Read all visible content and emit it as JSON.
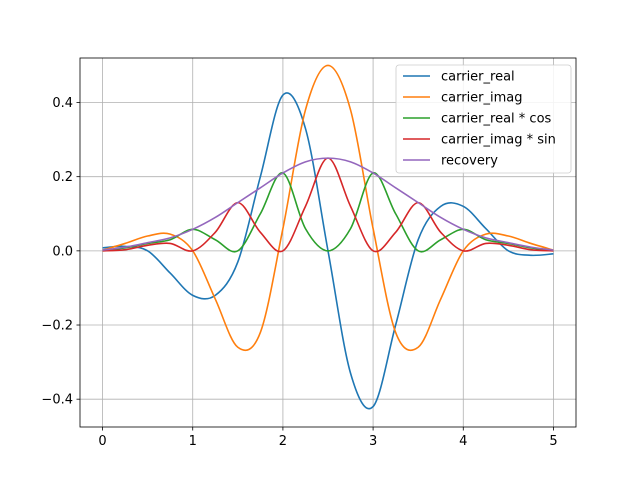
{
  "chart_data": {
    "type": "line",
    "title": "",
    "xlabel": "",
    "ylabel": "",
    "xlim": [
      -0.25,
      5.25
    ],
    "ylim": [
      -0.475,
      0.52
    ],
    "grid": true,
    "legend_position": "top-right",
    "x_ticks": [
      {
        "value": 0,
        "label": "0"
      },
      {
        "value": 1,
        "label": "1"
      },
      {
        "value": 2,
        "label": "2"
      },
      {
        "value": 3,
        "label": "3"
      },
      {
        "value": 4,
        "label": "4"
      },
      {
        "value": 5,
        "label": "5"
      }
    ],
    "y_ticks": [
      {
        "value": -0.4,
        "label": "−0.4"
      },
      {
        "value": -0.2,
        "label": "−0.2"
      },
      {
        "value": 0.0,
        "label": "0.0"
      },
      {
        "value": 0.2,
        "label": "0.2"
      },
      {
        "value": 0.4,
        "label": "0.4"
      }
    ],
    "x": [
      0.0,
      0.25,
      0.5,
      0.75,
      1.0,
      1.25,
      1.5,
      1.75,
      2.0,
      2.25,
      2.5,
      2.75,
      3.0,
      3.25,
      3.5,
      3.75,
      4.0,
      4.25,
      4.5,
      4.75,
      5.0
    ],
    "series": [
      {
        "name": "carrier_real",
        "color": "#1f77b4",
        "values": [
          0.008,
          0.012,
          0.0,
          -0.06,
          -0.12,
          -0.12,
          -0.03,
          0.2,
          0.42,
          0.33,
          0.0,
          -0.33,
          -0.42,
          -0.2,
          0.03,
          0.12,
          0.12,
          0.06,
          0.0,
          -0.012,
          -0.008
        ]
      },
      {
        "name": "carrier_imag",
        "color": "#ff7f0e",
        "values": [
          0.002,
          0.02,
          0.04,
          0.045,
          0.0,
          -0.13,
          -0.26,
          -0.22,
          0.06,
          0.38,
          0.5,
          0.38,
          0.06,
          -0.22,
          -0.26,
          -0.13,
          0.0,
          0.045,
          0.04,
          0.02,
          0.002
        ]
      },
      {
        "name": "carrier_real * cos",
        "color": "#2ca02c",
        "values": [
          0.0,
          0.008,
          0.02,
          0.03,
          0.058,
          0.03,
          0.0,
          0.1,
          0.21,
          0.06,
          0.0,
          0.06,
          0.21,
          0.1,
          0.0,
          0.03,
          0.058,
          0.03,
          0.02,
          0.008,
          0.0
        ]
      },
      {
        "name": "carrier_imag * sin",
        "color": "#d62728",
        "values": [
          0.0,
          0.003,
          0.015,
          0.02,
          0.0,
          0.05,
          0.13,
          0.05,
          0.0,
          0.12,
          0.25,
          0.12,
          0.0,
          0.05,
          0.13,
          0.05,
          0.0,
          0.02,
          0.015,
          0.003,
          0.0
        ]
      },
      {
        "name": "recovery",
        "color": "#9467bd",
        "values": [
          0.002,
          0.01,
          0.022,
          0.035,
          0.058,
          0.09,
          0.13,
          0.17,
          0.21,
          0.24,
          0.25,
          0.24,
          0.21,
          0.17,
          0.13,
          0.09,
          0.058,
          0.035,
          0.022,
          0.01,
          0.002
        ]
      }
    ]
  }
}
